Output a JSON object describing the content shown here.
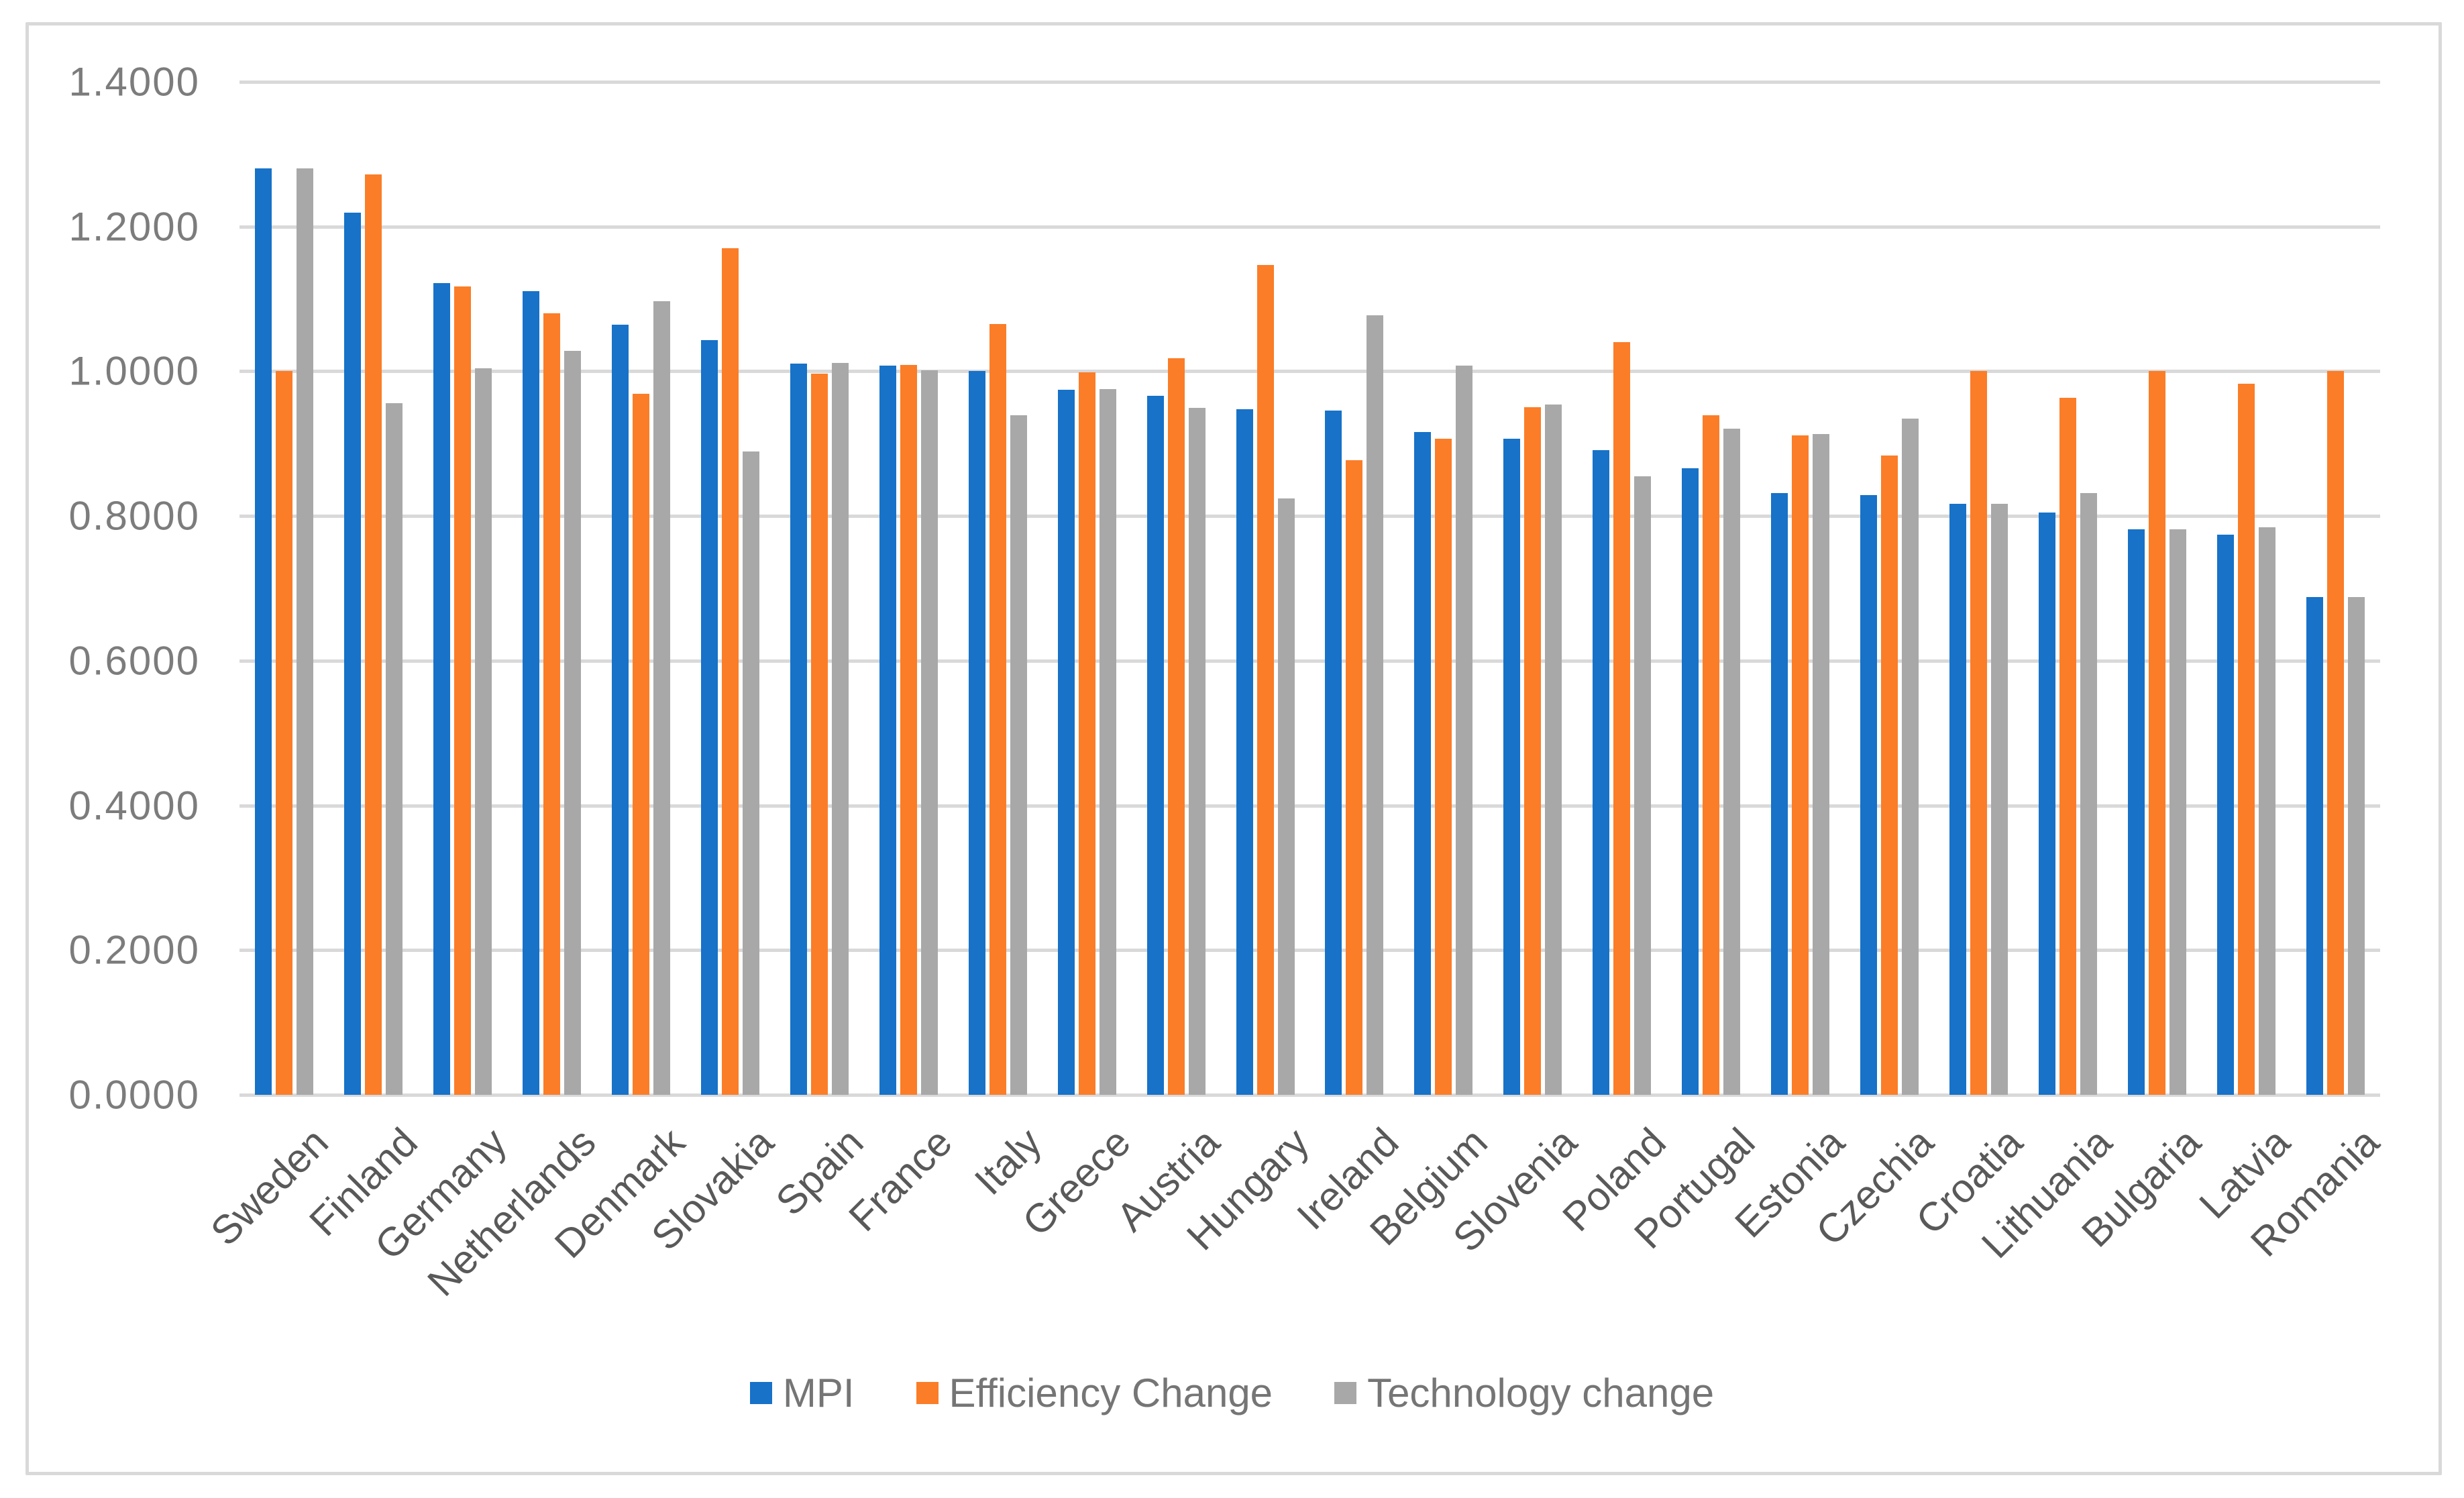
{
  "chart_data": {
    "type": "bar",
    "title": "",
    "categories": [
      "Sweden",
      "Finland",
      "Germany",
      "Netherlands",
      "Denmark",
      "Slovakia",
      "Spain",
      "France",
      "Italy",
      "Greece",
      "Austria",
      "Hungary",
      "Ireland",
      "Belgium",
      "Slovenia",
      "Poland",
      "Portugal",
      "Estonia",
      "Czechia",
      "Croatia",
      "Lithuania",
      "Bulgaria",
      "Latvia",
      "Romania"
    ],
    "series": [
      {
        "name": "MPI",
        "color": "#1772C8",
        "values": [
          1.28,
          1.219,
          1.122,
          1.111,
          1.064,
          1.043,
          1.011,
          1.008,
          1.0,
          0.974,
          0.966,
          0.948,
          0.946,
          0.916,
          0.907,
          0.891,
          0.866,
          0.832,
          0.829,
          0.817,
          0.805,
          0.782,
          0.774,
          0.688
        ]
      },
      {
        "name": "Efficiency Change",
        "color": "#FB7D28",
        "values": [
          1.0,
          1.272,
          1.117,
          1.08,
          0.969,
          1.17,
          0.997,
          1.009,
          1.065,
          0.999,
          1.018,
          1.147,
          0.877,
          0.907,
          0.95,
          1.04,
          0.939,
          0.911,
          0.884,
          1.0,
          0.963,
          1.0,
          0.983,
          1.0
        ]
      },
      {
        "name": "Technology change",
        "color": "#A8A8A8",
        "values": [
          1.28,
          0.956,
          1.004,
          1.028,
          1.097,
          0.889,
          1.012,
          1.001,
          0.939,
          0.975,
          0.949,
          0.824,
          1.077,
          1.008,
          0.954,
          0.855,
          0.921,
          0.913,
          0.935,
          0.817,
          0.832,
          0.782,
          0.784,
          0.688
        ]
      }
    ],
    "ylim": [
      0.0,
      1.4
    ],
    "ytick_step": 0.2,
    "ytick_labels": [
      "1.4000",
      "1.2000",
      "1.0000",
      "0.8000",
      "0.6000",
      "0.4000",
      "0.2000",
      "0.0000"
    ],
    "grid": "horizontal",
    "legend_position": "bottom",
    "colors": {
      "gridline": "#D9D9D9",
      "card_border": "#D9D9D9",
      "y_tick_text": "#7C7C7C",
      "x_tick_text": "#595959",
      "legend_text": "#757575",
      "background": "#FFFFFF"
    }
  }
}
